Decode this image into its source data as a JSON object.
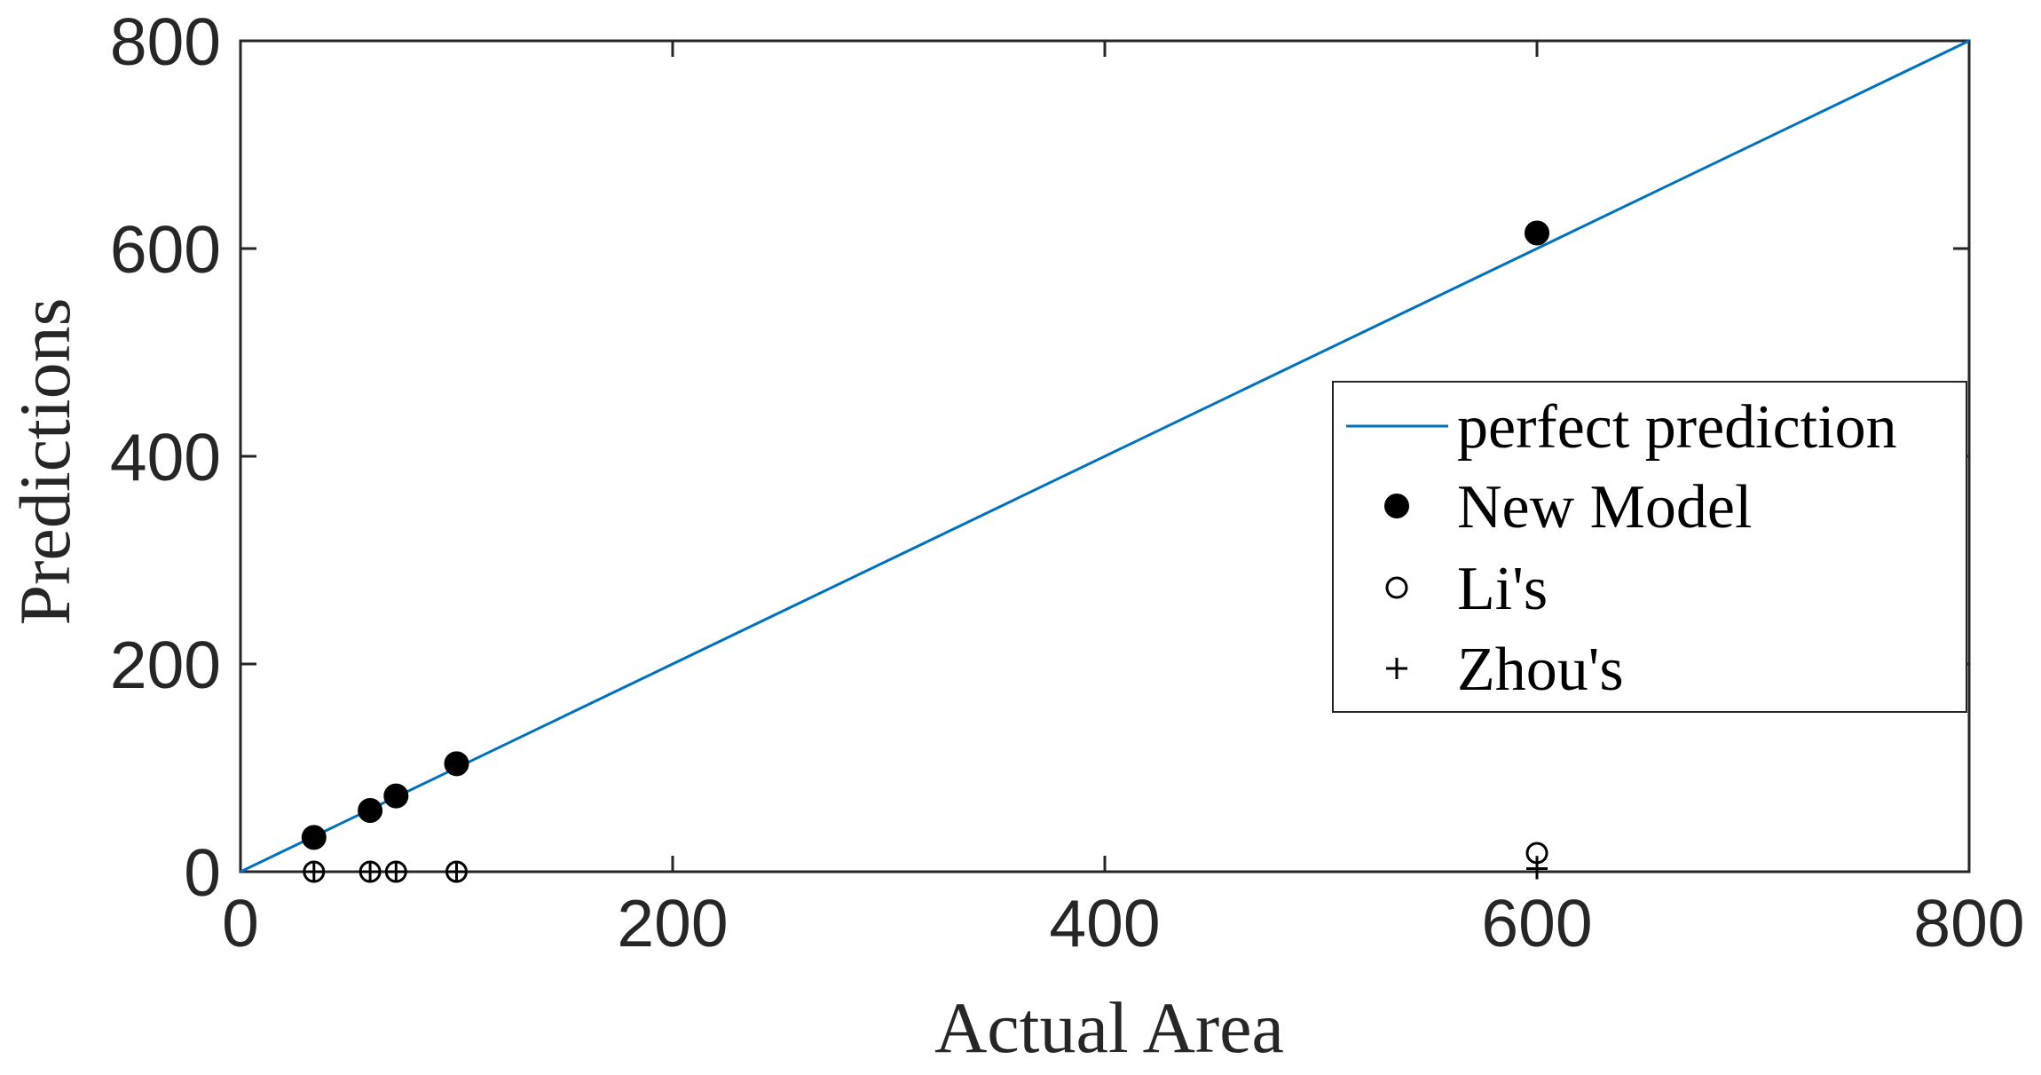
{
  "chart_data": {
    "type": "scatter",
    "title": "",
    "xlabel": "Actual Area",
    "ylabel": "Predictions",
    "xlim": [
      0,
      800
    ],
    "ylim": [
      0,
      800
    ],
    "x_ticks": [
      0,
      200,
      400,
      600,
      800
    ],
    "y_ticks": [
      0,
      200,
      400,
      600,
      800
    ],
    "grid": false,
    "legend_position": "right",
    "series": [
      {
        "name": "perfect prediction",
        "style": "line",
        "color": "#0072BD",
        "x": [
          0,
          800
        ],
        "y": [
          0,
          800
        ]
      },
      {
        "name": "New Model",
        "style": "filled-circle",
        "color": "#000000",
        "x": [
          34,
          60,
          72,
          100,
          600
        ],
        "y": [
          33,
          59,
          73,
          104,
          615
        ]
      },
      {
        "name": "Li's",
        "style": "open-circle",
        "color": "#000000",
        "x": [
          34,
          60,
          72,
          100,
          600
        ],
        "y": [
          0,
          0,
          0,
          0,
          18
        ]
      },
      {
        "name": "Zhou's",
        "style": "plus",
        "color": "#000000",
        "x": [
          34,
          60,
          72,
          100,
          600
        ],
        "y": [
          0,
          0,
          0,
          0,
          3
        ]
      }
    ]
  }
}
